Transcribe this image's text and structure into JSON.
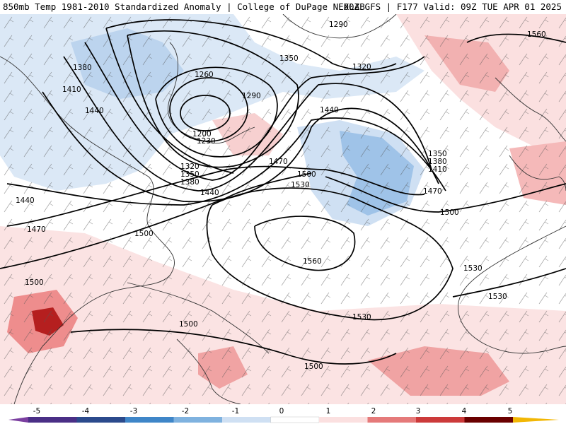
{
  "header": {
    "left": "850mb Temp 1981-2010 Standardized Anomaly | College of DuPage NEXLAB",
    "right": "00Z GFS | F177 Valid: 09Z TUE APR 01 2025"
  },
  "map": {
    "region": "North Atlantic Ocean, eastern North America, western Europe, northwest Africa",
    "height_units": "dam (850mb geopotential height)",
    "contour_labels": [
      {
        "id": "c1290a",
        "text": "1290"
      },
      {
        "id": "c1560a",
        "text": "1560"
      },
      {
        "id": "c1350a",
        "text": "1350"
      },
      {
        "id": "c1320a",
        "text": "1320"
      },
      {
        "id": "c1380a",
        "text": "1380"
      },
      {
        "id": "c1410a",
        "text": "1410"
      },
      {
        "id": "c1440a",
        "text": "1440"
      },
      {
        "id": "c1260a",
        "text": "1260"
      },
      {
        "id": "c1290b",
        "text": "1290"
      },
      {
        "id": "c1200a",
        "text": "1200"
      },
      {
        "id": "c1230a",
        "text": "1230"
      },
      {
        "id": "c1440b",
        "text": "1440"
      },
      {
        "id": "c1320b",
        "text": "1320"
      },
      {
        "id": "c1350b",
        "text": "1350"
      },
      {
        "id": "c1380b",
        "text": "1380"
      },
      {
        "id": "c1440c",
        "text": "1440"
      },
      {
        "id": "c1470a",
        "text": "1470"
      },
      {
        "id": "c1500a",
        "text": "1500"
      },
      {
        "id": "c1530a",
        "text": "1530"
      },
      {
        "id": "c1350c",
        "text": "1350"
      },
      {
        "id": "c1380c",
        "text": "1380"
      },
      {
        "id": "c1410b",
        "text": "1410"
      },
      {
        "id": "c1470b",
        "text": "1470"
      },
      {
        "id": "c1500b",
        "text": "1500"
      },
      {
        "id": "c1440d",
        "text": "1440"
      },
      {
        "id": "c1470c",
        "text": "1470"
      },
      {
        "id": "c1500c",
        "text": "1500"
      },
      {
        "id": "c1500d",
        "text": "1500"
      },
      {
        "id": "c1560b",
        "text": "1560"
      },
      {
        "id": "c1530b",
        "text": "1530"
      },
      {
        "id": "c1530c",
        "text": "1530"
      },
      {
        "id": "c1530d",
        "text": "1530"
      },
      {
        "id": "c1500e",
        "text": "1500"
      },
      {
        "id": "c1500f",
        "text": "1500"
      }
    ]
  },
  "colorbar": {
    "ticks": [
      "-5",
      "-4",
      "-3",
      "-2",
      "-1",
      "0",
      "1",
      "2",
      "3",
      "4",
      "5"
    ],
    "colors": [
      "#7b3fa0",
      "#2b4a8c",
      "#3f86c8",
      "#7fb2df",
      "#b9d3ec",
      "#e3edf8",
      "#ffffff",
      "#fbe0e0",
      "#f5b3b3",
      "#e57a7a",
      "#cc3a3a",
      "#9a1010",
      "#6a0000",
      "#f2b705"
    ]
  }
}
